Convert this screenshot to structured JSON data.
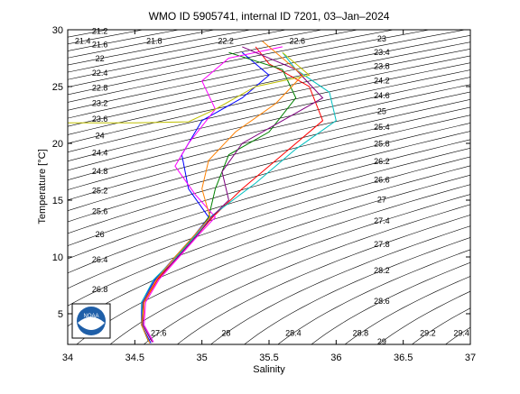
{
  "chart_data": {
    "type": "line",
    "title": "WMO ID 5905741, internal ID 7201, 03–Jan–2024",
    "x_label": "Salinity",
    "y_label": "Temperature [°C]",
    "xlim": [
      34,
      37
    ],
    "ylim": [
      2.3,
      30
    ],
    "xticks": [
      34,
      34.5,
      35,
      35.5,
      36,
      36.5,
      37
    ],
    "yticks": [
      5,
      10,
      15,
      20,
      25,
      30
    ],
    "contour_color": "#000000",
    "density_levels": [
      21.2,
      21.4,
      21.6,
      21.8,
      22,
      22.2,
      22.4,
      22.6,
      22.8,
      23,
      23.2,
      23.4,
      23.6,
      23.8,
      24,
      24.2,
      24.4,
      24.6,
      24.8,
      25,
      25.2,
      25.4,
      25.6,
      25.8,
      26,
      26.2,
      26.4,
      26.6,
      26.8,
      27,
      27.2,
      27.4,
      27.6,
      27.8,
      28,
      28.2,
      28.4,
      28.6,
      28.8,
      29,
      29.2,
      29.4
    ],
    "series": [
      {
        "color": "#0000ff",
        "x": [
          34.62,
          34.55,
          34.55,
          34.65,
          34.8,
          34.95,
          35.05,
          34.9,
          34.85,
          35.0,
          35.3,
          35.5,
          35.3
        ],
        "values": [
          2.4,
          4,
          6,
          8,
          10,
          12,
          13.5,
          16,
          19,
          22,
          24,
          26,
          28
        ]
      },
      {
        "color": "#ff0000",
        "x": [
          34.63,
          34.56,
          34.57,
          34.67,
          34.82,
          34.97,
          35.08,
          35.3,
          35.6,
          35.9,
          35.8,
          35.5,
          35.4
        ],
        "values": [
          2.5,
          4,
          6,
          8,
          10,
          12,
          13.5,
          16,
          19,
          22,
          25,
          27,
          28.5
        ]
      },
      {
        "color": "#008000",
        "x": [
          34.6,
          34.55,
          34.56,
          34.66,
          34.8,
          34.96,
          35.05,
          35.1,
          35.2,
          35.5,
          35.7,
          35.6,
          35.2
        ],
        "values": [
          2.6,
          4,
          6,
          8,
          10,
          12,
          13.5,
          16,
          19,
          21,
          24,
          26.5,
          28
        ]
      },
      {
        "color": "#ff00ff",
        "x": [
          34.64,
          34.57,
          34.58,
          34.68,
          34.83,
          34.98,
          35.1,
          34.95,
          34.8,
          34.9,
          35.1,
          35.0,
          35.2,
          35.6
        ],
        "values": [
          2.5,
          4,
          6,
          8,
          10,
          12,
          13.5,
          15.5,
          18,
          20,
          23,
          25.5,
          27.5,
          28.5
        ]
      },
      {
        "color": "#00bfbf",
        "x": [
          34.62,
          34.56,
          34.55,
          34.64,
          34.81,
          34.96,
          35.06,
          35.4,
          35.7,
          36.0,
          35.95,
          35.7,
          35.6
        ],
        "values": [
          2.7,
          4,
          6,
          8,
          10,
          12,
          13.5,
          16.5,
          19.5,
          22,
          24.5,
          26.5,
          28
        ]
      },
      {
        "color": "#bfbf00",
        "x": [
          34.0,
          34.5,
          34.9,
          35.1,
          35.4,
          35.8,
          35.6
        ],
        "values": [
          21.8,
          21.8,
          21.9,
          23,
          25,
          26,
          28
        ]
      },
      {
        "color": "#7f007f",
        "x": [
          34.63,
          34.56,
          34.56,
          34.66,
          34.82,
          34.97,
          35.07,
          35.2,
          35.15,
          35.3,
          35.6,
          35.9,
          35.7,
          35.3
        ],
        "values": [
          2.5,
          4,
          6,
          8,
          10,
          12,
          13.5,
          15,
          17.5,
          20,
          22,
          24,
          26.5,
          28.5
        ]
      },
      {
        "color": "#ff8000",
        "x": [
          34.61,
          34.55,
          34.57,
          34.66,
          34.8,
          34.95,
          35.06,
          35.0,
          35.05,
          35.25,
          35.55,
          35.75,
          35.45
        ],
        "values": [
          2.4,
          4,
          6,
          8,
          10,
          12,
          13.5,
          16,
          18.5,
          21,
          23.5,
          26,
          29
        ]
      }
    ]
  }
}
